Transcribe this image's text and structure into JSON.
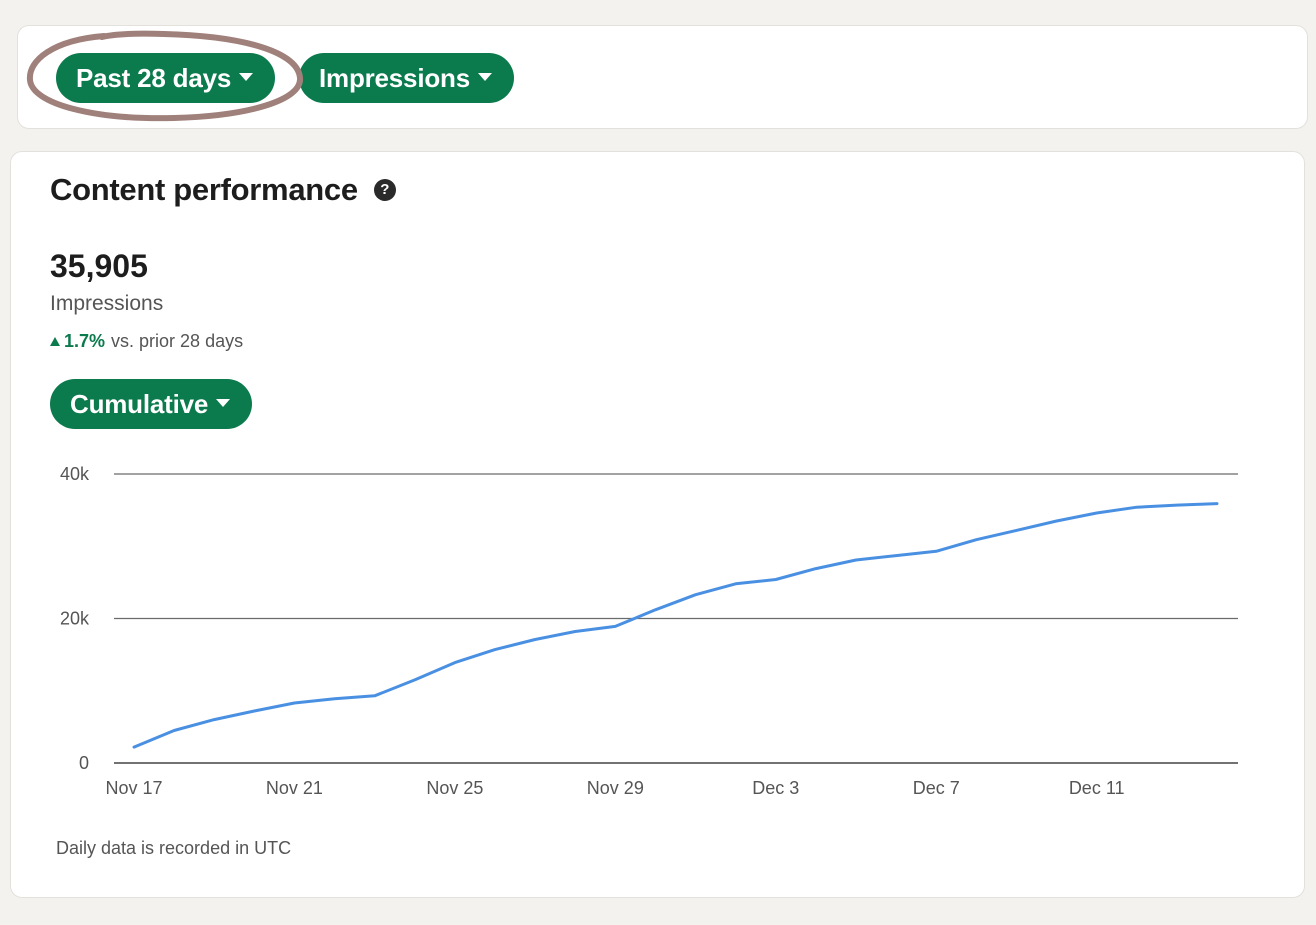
{
  "filters": {
    "period_label": "Past 28 days",
    "metric_label": "Impressions"
  },
  "performance": {
    "title": "Content performance",
    "help_icon": "?",
    "total": "35,905",
    "metric": "Impressions",
    "change_pct": "1.7%",
    "change_text": "vs. prior 28 days",
    "mode_label": "Cumulative",
    "footnote": "Daily data is recorded in UTC"
  },
  "colors": {
    "accent": "#0b7a4d",
    "line": "#4a90e2",
    "annotation": "#a0807a"
  },
  "chart_data": {
    "type": "line",
    "title": "",
    "xlabel": "",
    "ylabel": "",
    "ylim": [
      0,
      40000
    ],
    "yticks": [
      0,
      20000,
      40000
    ],
    "ytick_labels": [
      "0",
      "20k",
      "40k"
    ],
    "grid": true,
    "x": [
      "Nov 17",
      "Nov 18",
      "Nov 19",
      "Nov 20",
      "Nov 21",
      "Nov 22",
      "Nov 23",
      "Nov 24",
      "Nov 25",
      "Nov 26",
      "Nov 27",
      "Nov 28",
      "Nov 29",
      "Nov 30",
      "Dec 1",
      "Dec 2",
      "Dec 3",
      "Dec 4",
      "Dec 5",
      "Dec 6",
      "Dec 7",
      "Dec 8",
      "Dec 9",
      "Dec 10",
      "Dec 11",
      "Dec 12",
      "Dec 13",
      "Dec 14"
    ],
    "xtick_labels": [
      "Nov 17",
      "Nov 21",
      "Nov 25",
      "Nov 29",
      "Dec 3",
      "Dec 7",
      "Dec 11"
    ],
    "series": [
      {
        "name": "",
        "values": [
          2200,
          4500,
          6000,
          7200,
          8300,
          8900,
          9300,
          11500,
          13900,
          15700,
          17100,
          18200,
          18900,
          21200,
          23300,
          24800,
          25400,
          26900,
          28100,
          28700,
          29300,
          30900,
          32200,
          33500,
          34600,
          35400,
          35700,
          35905
        ]
      }
    ]
  }
}
